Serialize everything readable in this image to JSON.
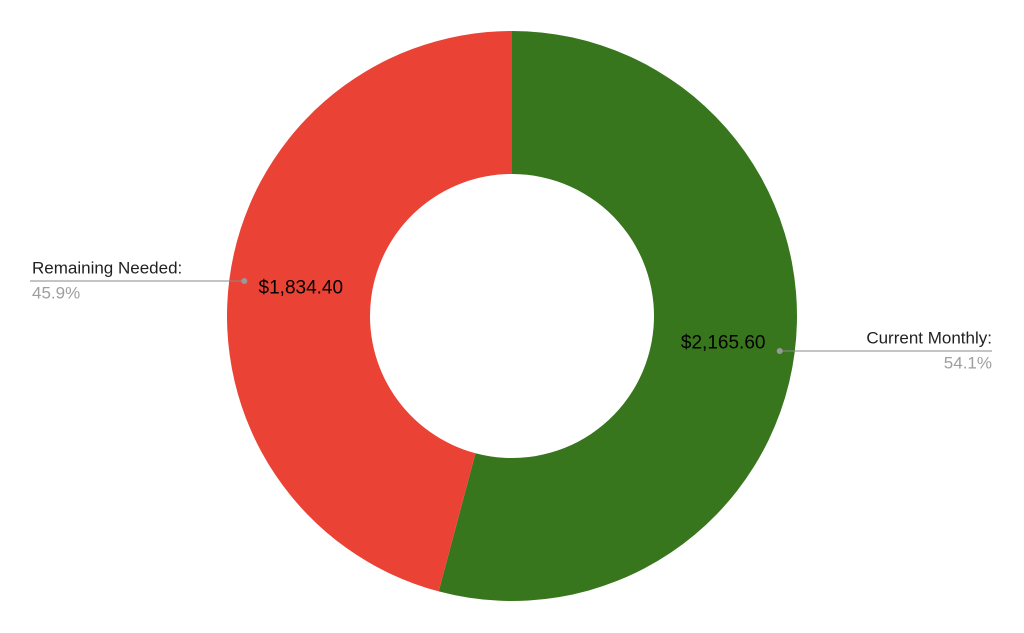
{
  "chart_data": {
    "type": "donut",
    "categories": [
      "Current Monthly:",
      "Remaining Needed:"
    ],
    "values": [
      2165.6,
      1834.4
    ],
    "value_labels": [
      "$2,165.60",
      "$1,834.40"
    ],
    "percent_labels": [
      "54.1%",
      "45.9%"
    ],
    "colors": [
      "#38761d",
      "#ea4335"
    ]
  }
}
